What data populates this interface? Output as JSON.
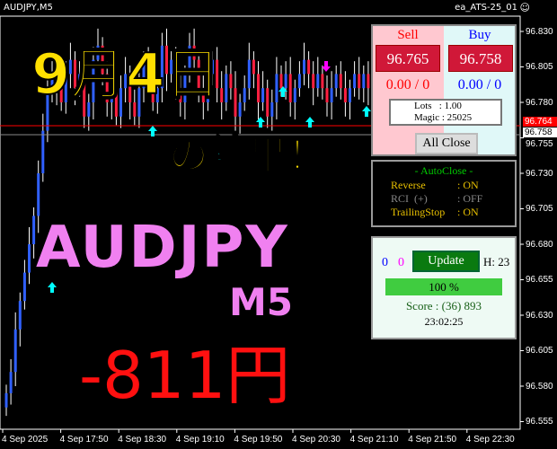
{
  "header": {
    "symbol": "AUDJPY,M5",
    "ea_name": "ea_ATS-25_01",
    "smiley_icon": "smiley-face-icon"
  },
  "price_axis": {
    "labels": [
      "96.830",
      "96.805",
      "96.780",
      "96.755",
      "96.730",
      "96.705",
      "96.680",
      "96.655",
      "96.630",
      "96.605",
      "96.580",
      "96.555"
    ],
    "ask_tag": "96.764",
    "bid_tag": "96.758"
  },
  "time_axis": {
    "labels": [
      "4 Sep 2025",
      "4 Sep 17:50",
      "4 Sep 18:30",
      "4 Sep 19:10",
      "4 Sep 19:50",
      "4 Sep 20:30",
      "4 Sep 21:10",
      "4 Sep 21:50",
      "4 Sep 22:30"
    ]
  },
  "candles_close": [
    96.575,
    96.59,
    96.62,
    96.64,
    96.66,
    96.68,
    96.7,
    96.73,
    96.76,
    96.79,
    96.8,
    96.79,
    96.78,
    96.8,
    96.81,
    96.79,
    96.8,
    96.77,
    96.78,
    96.81,
    96.82,
    96.8,
    96.78,
    96.79,
    96.77,
    96.79,
    96.8,
    96.78,
    96.77,
    96.79,
    96.81,
    96.8,
    96.78,
    96.79,
    96.82,
    96.8,
    96.81,
    96.79,
    96.78,
    96.8,
    96.82,
    96.81,
    96.79,
    96.78,
    96.8,
    96.81,
    96.79,
    96.78,
    96.8,
    96.79,
    96.77,
    96.78,
    96.79,
    96.81,
    96.8,
    96.78,
    96.79,
    96.77,
    96.78,
    96.8,
    96.79,
    96.8,
    96.78,
    96.79,
    96.8,
    96.81,
    96.8,
    96.79,
    96.8,
    96.79,
    96.78,
    96.79,
    96.8,
    96.79,
    96.78,
    96.79,
    96.8,
    96.79,
    96.8,
    96.79
  ],
  "colors": {
    "bull": "#3060ff",
    "bear": "#ff2040",
    "ask_line": "#ff0000",
    "bid_line": "#888888",
    "arrow_up": "#00ffff",
    "arrow_down": "#ff00ff"
  },
  "trade_panel": {
    "sell_label": "Sell",
    "buy_label": "Buy",
    "sell_price": "96.765",
    "buy_price": "96.758",
    "sell_position": "0.00 / 0",
    "buy_position": "0.00 / 0",
    "lots": "Lots   : 1.00",
    "magic": "Magic : 25025",
    "all_close": "All Close"
  },
  "autoclose_panel": {
    "title": "- AutoClose -",
    "rows": [
      {
        "label": "Reverse",
        "value": ": ON"
      },
      {
        "label": "RCI  (+)",
        "value": ": OFF"
      },
      {
        "label": "TrailingStop",
        "value": ": ON"
      }
    ]
  },
  "update_panel": {
    "count_blue": "0",
    "count_magenta": "0",
    "update_label": "Update",
    "hour": "H: 23",
    "progress_text": "100 %",
    "progress": 100,
    "score": "Score : (36) 893",
    "time": "23:02:25"
  },
  "overlay": {
    "date": "9月4日",
    "result": "の結果！",
    "pair": "AUDJPY",
    "timeframe": "M5",
    "pnl": "-811円"
  }
}
